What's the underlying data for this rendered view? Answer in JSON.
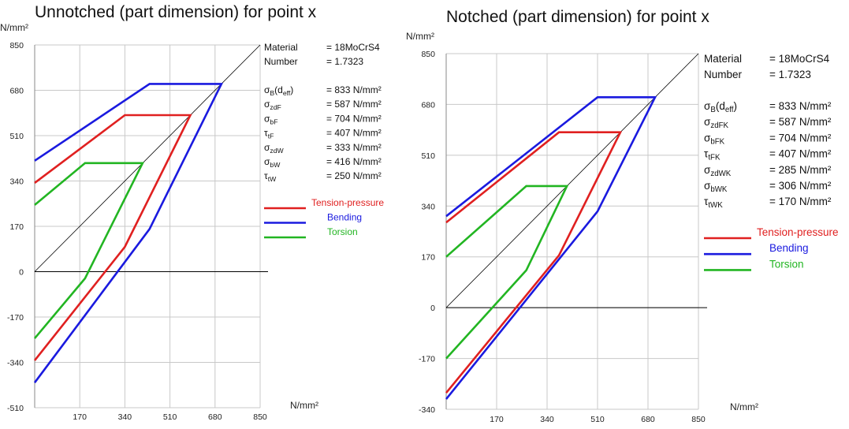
{
  "colors": {
    "tension": "#e02020",
    "bending": "#1a1adf",
    "torsion": "#22b522",
    "tension_text": "#e02020",
    "bending_text": "#1a1adf",
    "torsion_text": "#22b522",
    "grid": "#c8c8c8",
    "axis": "#000000",
    "diagonal": "#000000"
  },
  "chart_data": [
    {
      "type": "line",
      "title": "Unnotched (part dimension) for point x",
      "ylabel": "N/mm²",
      "xlabel": "N/mm²",
      "xlim": [
        0,
        850
      ],
      "ylim": [
        -510,
        850
      ],
      "xticks": [
        170,
        340,
        510,
        680,
        850
      ],
      "yticks": [
        850,
        680,
        510,
        340,
        170,
        0,
        -170,
        -340,
        -510
      ],
      "grid": true,
      "info": {
        "material_label": "Material",
        "material_value": "= 18MoCrS4",
        "number_label": "Number",
        "number_value": "= 1.7323",
        "rows": [
          {
            "sym": "σ",
            "sub": "B",
            "suffix": "(d",
            "sub2": "eff",
            "close": ")",
            "value": "= 833  N/mm²"
          },
          {
            "sym": "σ",
            "sub": "zdF",
            "value": "= 587  N/mm²"
          },
          {
            "sym": "σ",
            "sub": "bF",
            "value": "= 704  N/mm²"
          },
          {
            "sym": "τ",
            "sub": "tF",
            "value": "= 407  N/mm²"
          },
          {
            "sym": "σ",
            "sub": "zdW",
            "value": "= 333  N/mm²"
          },
          {
            "sym": "σ",
            "sub": "bW",
            "value": "= 416  N/mm²"
          },
          {
            "sym": "τ",
            "sub": "tW",
            "value": "= 250  N/mm²"
          }
        ]
      },
      "legend": [
        "Tension-pressure",
        "Bending",
        "Torsion"
      ],
      "series": [
        {
          "name": "Tension-pressure",
          "key": "tension",
          "points": [
            [
              0,
              333
            ],
            [
              340,
              587
            ],
            [
              587,
              587
            ],
            [
              340,
              93
            ],
            [
              0,
              -333
            ]
          ]
        },
        {
          "name": "Bending",
          "key": "bending",
          "points": [
            [
              0,
              416
            ],
            [
              433,
              704
            ],
            [
              704,
              704
            ],
            [
              433,
              160
            ],
            [
              0,
              -416
            ]
          ]
        },
        {
          "name": "Torsion",
          "key": "torsion",
          "points": [
            [
              0,
              250
            ],
            [
              190,
              407
            ],
            [
              407,
              407
            ],
            [
              190,
              -25
            ],
            [
              0,
              -250
            ]
          ]
        }
      ]
    },
    {
      "type": "line",
      "title": "Notched (part dimension) for point x",
      "ylabel": "N/mm²",
      "xlabel": "N/mm²",
      "xlim": [
        0,
        850
      ],
      "ylim": [
        -340,
        850
      ],
      "xticks": [
        170,
        340,
        510,
        680,
        850
      ],
      "yticks": [
        850,
        680,
        510,
        340,
        170,
        0,
        -170,
        -340
      ],
      "grid": true,
      "info": {
        "material_label": "Material",
        "material_value": "= 18MoCrS4",
        "number_label": "Number",
        "number_value": "= 1.7323",
        "rows": [
          {
            "sym": "σ",
            "sub": "B",
            "suffix": "(d",
            "sub2": "eff",
            "close": ")",
            "value": "= 833  N/mm²"
          },
          {
            "sym": "σ",
            "sub": "zdFK",
            "value": "= 587  N/mm²"
          },
          {
            "sym": "σ",
            "sub": "bFK",
            "value": "= 704  N/mm²"
          },
          {
            "sym": "τ",
            "sub": "tFK",
            "value": "= 407  N/mm²"
          },
          {
            "sym": "σ",
            "sub": "zdWK",
            "value": "= 285  N/mm²"
          },
          {
            "sym": "σ",
            "sub": "bWK",
            "value": "= 306  N/mm²"
          },
          {
            "sym": "τ",
            "sub": "tWK",
            "value": "= 170  N/mm²"
          }
        ]
      },
      "legend": [
        "Tension-pressure",
        "Bending",
        "Torsion"
      ],
      "series": [
        {
          "name": "Tension-pressure",
          "key": "tension",
          "points": [
            [
              0,
              285
            ],
            [
              380,
              587
            ],
            [
              587,
              587
            ],
            [
              380,
              175
            ],
            [
              0,
              -285
            ]
          ]
        },
        {
          "name": "Bending",
          "key": "bending",
          "points": [
            [
              0,
              306
            ],
            [
              510,
              704
            ],
            [
              704,
              704
            ],
            [
              510,
              322
            ],
            [
              0,
              -306
            ]
          ]
        },
        {
          "name": "Torsion",
          "key": "torsion",
          "points": [
            [
              0,
              170
            ],
            [
              270,
              407
            ],
            [
              407,
              407
            ],
            [
              270,
              125
            ],
            [
              0,
              -170
            ]
          ]
        }
      ]
    }
  ]
}
